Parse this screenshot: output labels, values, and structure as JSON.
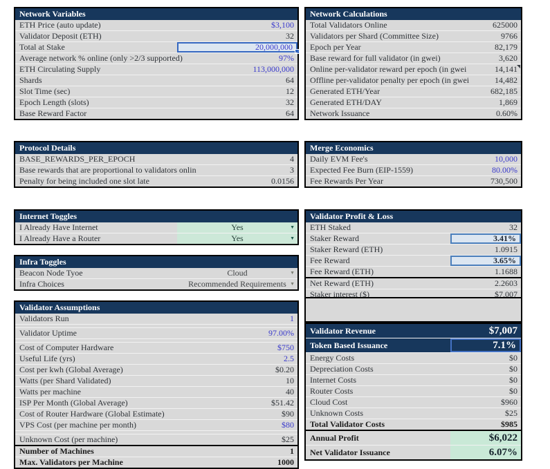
{
  "colors": {
    "header_navy": "#17375c",
    "cell_gray": "#d9d9d9",
    "input_blue": "#3a3acc",
    "selection_border": "#3567c0",
    "selection_fill": "#dce6f1",
    "toggle_green": "#cce8d8",
    "profit_green": "#c9e9d7"
  },
  "tables": {
    "network_variables": {
      "title": "Network Variables",
      "rows": [
        {
          "label": "ETH Price (auto update)",
          "value": "$3,100",
          "style": "blue"
        },
        {
          "label": "Validator Deposit (ETH)",
          "value": "32",
          "style": "plain"
        },
        {
          "label": "Total at Stake",
          "value": "20,000,000",
          "style": "selected"
        },
        {
          "label": "Average network % online (only >2/3 supported)",
          "value": "97%",
          "style": "blue"
        },
        {
          "label": "ETH Circulating Supply",
          "value": "113,000,000",
          "style": "blue"
        },
        {
          "label": "Shards",
          "value": "64",
          "style": "plain"
        },
        {
          "label": "Slot Time (sec)",
          "value": "12",
          "style": "plain"
        },
        {
          "label": "Epoch Length (slots)",
          "value": "32",
          "style": "plain"
        },
        {
          "label": "Base Reward Factor",
          "value": "64",
          "style": "plain"
        }
      ]
    },
    "network_calculations": {
      "title": "Network Calculations",
      "rows": [
        {
          "label": "Total Validators Online",
          "value": "625000",
          "style": "plain"
        },
        {
          "label": "Validators per Shard (Committee Size)",
          "value": "9766",
          "style": "plain"
        },
        {
          "label": "Epoch per Year",
          "value": "82,179",
          "style": "plain"
        },
        {
          "label": "Base reward for full validator (in gwei)",
          "value": "3,620",
          "style": "plain"
        },
        {
          "label": "Online per-validator reward per epoch (in gwei",
          "value": "14,141",
          "style": "plain",
          "comment": true
        },
        {
          "label": "Offline per-validator penalty per epoch (in gwei",
          "value": "14,482",
          "style": "plain"
        },
        {
          "label": "Generated ETH/Year",
          "value": "682,185",
          "style": "plain"
        },
        {
          "label": "Generated ETH/DAY",
          "value": "1,869",
          "style": "plain"
        },
        {
          "label": "Network Issuance",
          "value": "0.60%",
          "style": "plain"
        }
      ]
    },
    "protocol_details": {
      "title": "Protocol Details",
      "rows": [
        {
          "label": "BASE_REWARDS_PER_EPOCH",
          "value": "4",
          "style": "plain"
        },
        {
          "label": "Base rewards that are proportional to validators onlin",
          "value": "3",
          "style": "plain"
        },
        {
          "label": "Penalty for being included one slot late",
          "value": "0.0156",
          "style": "plain"
        }
      ]
    },
    "merge_economics": {
      "title": "Merge Economics",
      "rows": [
        {
          "label": "Daily EVM Fee's",
          "value": "10,000",
          "style": "blue"
        },
        {
          "label": "Expected Fee Burn (EIP-1559)",
          "value": "80.00%",
          "style": "blue"
        },
        {
          "label": "Fee Rewards Per Year",
          "value": "730,500",
          "style": "plain"
        }
      ]
    },
    "internet_toggles": {
      "title": "Internet Toggles",
      "rows": [
        {
          "label": "I Already Have Internet",
          "value": "Yes",
          "style": "dd-green"
        },
        {
          "label": "I Already Have a Router",
          "value": "Yes",
          "style": "dd-green"
        }
      ]
    },
    "infra_toggles": {
      "title": "Infra Toggles",
      "rows": [
        {
          "label": "Beacon Node Tyoe",
          "value": "Cloud",
          "style": "dd-gray"
        },
        {
          "label": "Infra Choices",
          "value": "Recommended Requirements",
          "style": "dd-gray"
        }
      ]
    },
    "validator_assumptions": {
      "title": "Validator Assumptions",
      "rows": [
        {
          "label": "Validators Run",
          "value": "1",
          "style": "blue"
        },
        {
          "style": "spacer"
        },
        {
          "label": "Validator Uptime",
          "value": "97.00%",
          "style": "blue"
        },
        {
          "style": "spacer"
        },
        {
          "label": "Cost of Computer Hardware",
          "value": "$750",
          "style": "blue"
        },
        {
          "label": "Useful Life (yrs)",
          "value": "2.5",
          "style": "blue"
        },
        {
          "label": "Cost per kwh (Global Average)",
          "value": "$0.20",
          "style": "plain"
        },
        {
          "label": "Watts (per Shard Validated)",
          "value": "10",
          "style": "plain"
        },
        {
          "label": "Watts per machine",
          "value": "40",
          "style": "plain"
        },
        {
          "label": "ISP Per Month (Global Average)",
          "value": "$51.42",
          "style": "plain"
        },
        {
          "label": "Cost of Router Hardware (Global Estimate)",
          "value": "$90",
          "style": "plain"
        },
        {
          "label": "VPS Cost (per machine per month)",
          "value": "$80",
          "style": "blue"
        },
        {
          "style": "spacer"
        },
        {
          "label": "Unknown Cost (per machine)",
          "value": "$25",
          "style": "plain"
        },
        {
          "label": "Number of Machines",
          "value": "1",
          "style": "bold",
          "divider": true
        },
        {
          "label": "Max. Validators per Machine",
          "value": "1000",
          "style": "bold"
        }
      ]
    },
    "validator_pnl": {
      "title": "Validator Profit & Loss",
      "rows": [
        {
          "label": "ETH Staked",
          "value": "32",
          "style": "plain"
        },
        {
          "label": "Staker Reward",
          "value": "3.41%",
          "style": "highlight"
        },
        {
          "label": "Staker Reward (ETH)",
          "value": "1.0915",
          "style": "plain"
        },
        {
          "label": "Fee Reward",
          "value": "3.65%",
          "style": "highlight"
        },
        {
          "label": "Fee Reward (ETH)",
          "value": "1.1688",
          "style": "plain"
        },
        {
          "label": "Net Reward (ETH)",
          "value": "2.2603",
          "style": "plain",
          "divider": true
        },
        {
          "label": "Staker interest ($)",
          "value": "$7,007",
          "style": "plain"
        }
      ]
    },
    "validator_revenue": {
      "rows": [
        {
          "label": "Validator Revenue",
          "value": "$7,007",
          "style": "navy"
        },
        {
          "label": "Token Based Issuance",
          "value": "7.1%",
          "style": "navy-outline"
        },
        {
          "label": "Energy Costs",
          "value": "$0",
          "style": "plain"
        },
        {
          "label": "Depreciation Costs",
          "value": "$0",
          "style": "plain"
        },
        {
          "label": "Internet Costs",
          "value": "$0",
          "style": "plain"
        },
        {
          "label": "Router Costs",
          "value": "$0",
          "style": "plain"
        },
        {
          "label": "Cloud Cost",
          "value": "$960",
          "style": "plain"
        },
        {
          "label": "Unknown Costs",
          "value": "$25",
          "style": "plain"
        },
        {
          "label": "Total Validator Costs",
          "value": "$985",
          "style": "total"
        },
        {
          "label": "Annual Profit",
          "value": "$6,022",
          "style": "green-big",
          "divider": true
        },
        {
          "label": "Net Validator Issuance",
          "value": "6.07%",
          "style": "green-big"
        }
      ]
    }
  }
}
